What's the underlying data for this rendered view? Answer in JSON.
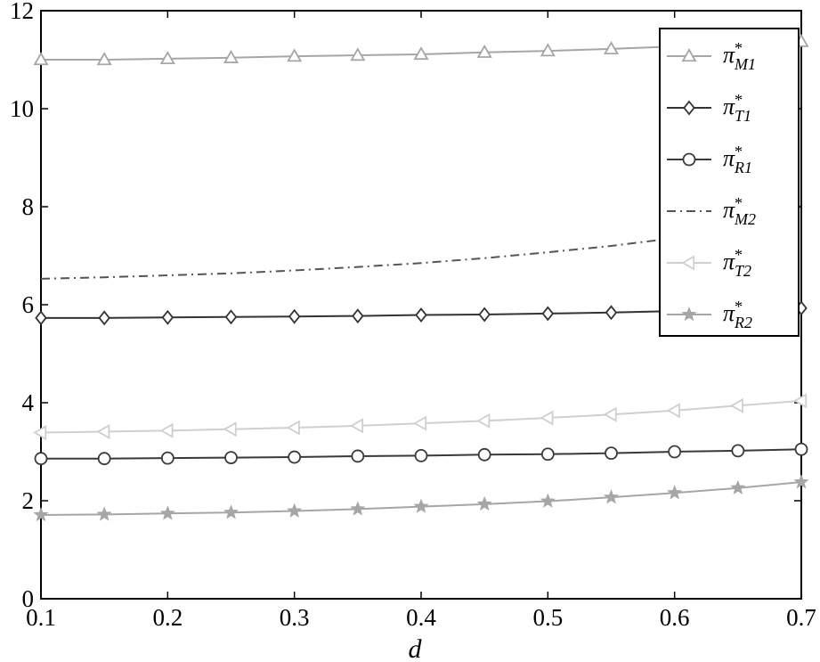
{
  "chart_data": {
    "type": "line",
    "xlabel": "d",
    "ylabel": "",
    "xlim": [
      0.1,
      0.7
    ],
    "ylim": [
      0,
      12
    ],
    "xticks": [
      "0.1",
      "0.2",
      "0.3",
      "0.4",
      "0.5",
      "0.6",
      "0.7"
    ],
    "yticks": [
      "0",
      "2",
      "4",
      "6",
      "8",
      "10",
      "12"
    ],
    "grid": false,
    "legend_position": "top-right",
    "x": [
      0.1,
      0.15,
      0.2,
      0.25,
      0.3,
      0.35,
      0.4,
      0.45,
      0.5,
      0.55,
      0.6,
      0.65,
      0.7
    ],
    "series": [
      {
        "name": "π*M1",
        "name_base": "π",
        "name_sup": "*",
        "name_sub": "M1",
        "marker": "triangle-up",
        "line": "solid",
        "color": "#a6a6a6",
        "values": [
          11.0,
          11.0,
          11.02,
          11.04,
          11.07,
          11.09,
          11.11,
          11.15,
          11.18,
          11.22,
          11.27,
          11.31,
          11.37
        ]
      },
      {
        "name": "π*T1",
        "name_base": "π",
        "name_sup": "*",
        "name_sub": "T1",
        "marker": "diamond",
        "line": "solid",
        "color": "#333333",
        "values": [
          5.73,
          5.73,
          5.74,
          5.75,
          5.76,
          5.77,
          5.79,
          5.8,
          5.82,
          5.84,
          5.87,
          5.9,
          5.93
        ]
      },
      {
        "name": "π*R1",
        "name_base": "π",
        "name_sup": "*",
        "name_sub": "R1",
        "marker": "circle",
        "line": "solid",
        "color": "#3a3a3a",
        "values": [
          2.86,
          2.86,
          2.87,
          2.88,
          2.89,
          2.91,
          2.92,
          2.94,
          2.95,
          2.97,
          3.0,
          3.02,
          3.05
        ]
      },
      {
        "name": "π*M2",
        "name_base": "π",
        "name_sup": "*",
        "name_sub": "M2",
        "marker": "none",
        "line": "dashdot",
        "color": "#555555",
        "values": [
          6.53,
          6.56,
          6.6,
          6.64,
          6.7,
          6.77,
          6.85,
          6.95,
          7.07,
          7.2,
          7.36,
          7.53,
          7.73
        ]
      },
      {
        "name": "π*T2",
        "name_base": "π",
        "name_sup": "*",
        "name_sub": "T2",
        "marker": "triangle-left",
        "line": "solid",
        "color": "#cfcfcf",
        "values": [
          3.39,
          3.41,
          3.43,
          3.46,
          3.49,
          3.53,
          3.58,
          3.63,
          3.69,
          3.76,
          3.84,
          3.94,
          4.04
        ]
      },
      {
        "name": "π*R2",
        "name_base": "π",
        "name_sup": "*",
        "name_sub": "R2",
        "marker": "star",
        "line": "solid",
        "color": "#a6a6a6",
        "values": [
          1.71,
          1.72,
          1.74,
          1.76,
          1.79,
          1.83,
          1.88,
          1.93,
          1.99,
          2.07,
          2.16,
          2.26,
          2.38
        ]
      }
    ]
  }
}
